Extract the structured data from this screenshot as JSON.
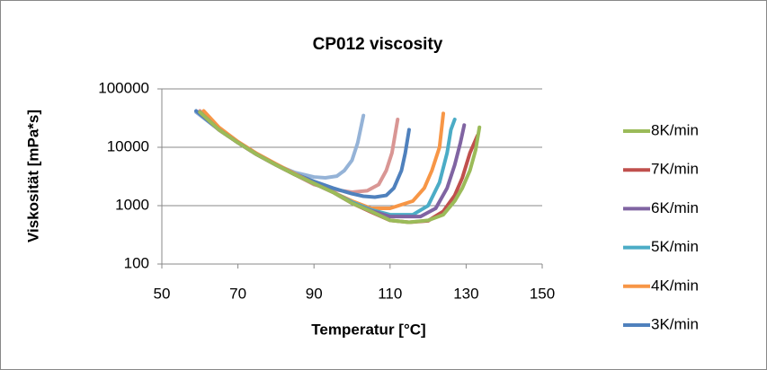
{
  "chart_data": {
    "type": "line",
    "title": "CP012 viscosity",
    "x_label": "Temperatur [°C]",
    "y_label": "Viskosität [mPa*s]",
    "xlim": [
      50,
      150
    ],
    "xticks": [
      50,
      70,
      90,
      110,
      130,
      150
    ],
    "ylim": [
      100,
      100000
    ],
    "yticks": [
      100,
      1000,
      10000,
      100000
    ],
    "yscale": "log",
    "grid": true,
    "legend": "right",
    "series": [
      {
        "name": "8K/min",
        "color": "#9bbb59",
        "x": [
          60,
          65,
          70,
          75,
          80,
          85,
          90,
          95,
          100,
          105,
          110,
          115,
          120,
          124,
          127,
          129,
          131,
          132.5,
          133.5
        ],
        "values": [
          40000,
          20000,
          12000,
          7500,
          5000,
          3400,
          2400,
          1700,
          1100,
          800,
          560,
          520,
          560,
          700,
          1200,
          2000,
          4000,
          9000,
          22000
        ]
      },
      {
        "name": "7K/min",
        "color": "#c0504d",
        "x": [
          60,
          65,
          70,
          75,
          80,
          85,
          90,
          95,
          100,
          105,
          110,
          115,
          120,
          124,
          127,
          129,
          131,
          133
        ],
        "values": [
          40000,
          20000,
          12000,
          7500,
          5000,
          3400,
          2400,
          1700,
          1100,
          780,
          560,
          520,
          550,
          800,
          1500,
          3000,
          8000,
          16000
        ]
      },
      {
        "name": "6K/min",
        "color": "#8064a2",
        "x": [
          60,
          65,
          70,
          75,
          80,
          85,
          90,
          95,
          100,
          105,
          110,
          118,
          122,
          125,
          127,
          128.5,
          129.5
        ],
        "values": [
          40000,
          20000,
          12000,
          7500,
          5000,
          3400,
          2400,
          1700,
          1100,
          820,
          650,
          650,
          900,
          2000,
          5000,
          12000,
          24000
        ]
      },
      {
        "name": "5K/min",
        "color": "#4bacc6",
        "x": [
          60,
          65,
          70,
          75,
          80,
          85,
          90,
          95,
          100,
          105,
          110,
          116,
          120,
          123,
          125,
          126,
          127
        ],
        "values": [
          40000,
          20000,
          12000,
          7500,
          5000,
          3400,
          2400,
          1700,
          1150,
          850,
          700,
          700,
          1000,
          2500,
          8000,
          20000,
          30000
        ]
      },
      {
        "name": "4K/min",
        "color": "#f79646",
        "x": [
          61,
          65,
          70,
          75,
          80,
          85,
          90,
          95,
          100,
          105,
          110,
          116,
          119,
          121,
          123,
          124
        ],
        "values": [
          42000,
          22000,
          12500,
          7800,
          5200,
          3500,
          2400,
          1700,
          1200,
          900,
          900,
          1200,
          2000,
          4000,
          10000,
          38000
        ]
      },
      {
        "name": "3K/min",
        "color": "#4f81bd",
        "x": [
          59,
          65,
          70,
          75,
          80,
          85,
          90,
          95,
          100,
          103,
          106,
          109,
          111,
          113,
          114,
          115
        ],
        "values": [
          42000,
          20000,
          12000,
          7500,
          5000,
          3500,
          2600,
          2000,
          1600,
          1450,
          1400,
          1500,
          2000,
          4000,
          8000,
          20000
        ]
      },
      {
        "color": "#d99694",
        "x": [
          60,
          65,
          70,
          75,
          80,
          85,
          90,
          95,
          100,
          104,
          107,
          109,
          110.5,
          112
        ],
        "values": [
          42000,
          21000,
          12000,
          7500,
          5000,
          3400,
          2300,
          1900,
          1700,
          1800,
          2300,
          4000,
          8000,
          30000
        ]
      },
      {
        "color": "#95b3d7",
        "x": [
          59,
          65,
          70,
          75,
          80,
          85,
          90,
          93,
          96,
          98,
          100,
          101.5,
          103
        ],
        "values": [
          40000,
          20000,
          12000,
          7500,
          5000,
          3700,
          3100,
          3000,
          3200,
          4000,
          6000,
          12000,
          35000
        ]
      }
    ]
  }
}
